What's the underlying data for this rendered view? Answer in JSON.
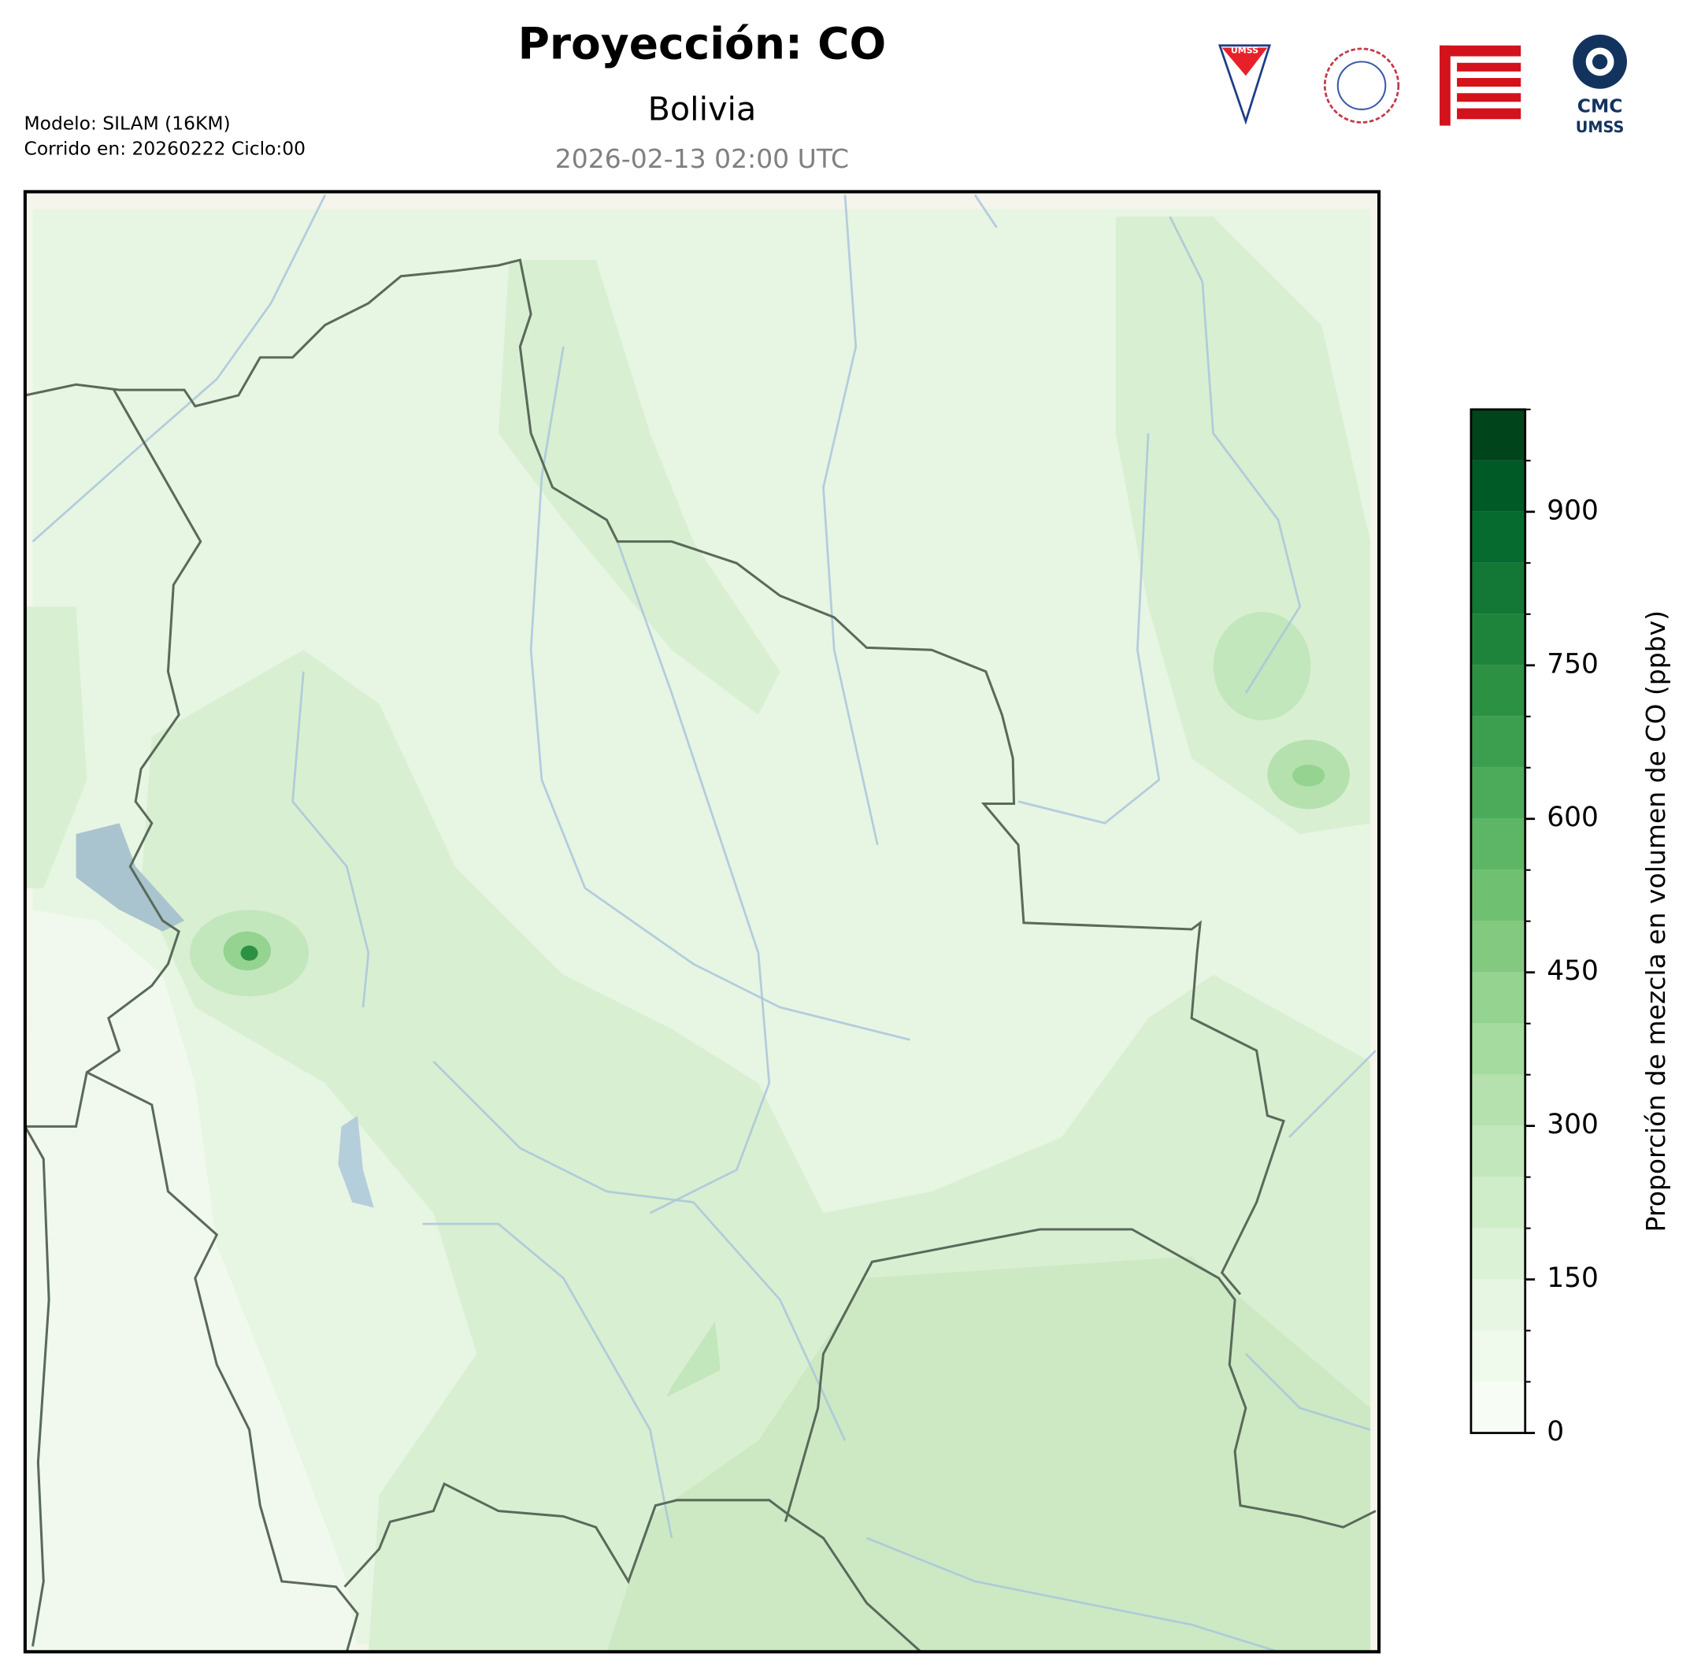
{
  "header": {
    "title": "Proyección: CO",
    "subtitle": "Bolivia",
    "timestamp": "2026-02-13 02:00 UTC",
    "model": "Modelo: SILAM (16KM)",
    "run": "Corrido en: 20260222 Ciclo:00"
  },
  "logos": {
    "umss": "UMSS",
    "cmc": "CMC",
    "cmc_sub": "UMSS"
  },
  "colorbar": {
    "label": "Proporción de mezcla en volumen de CO (ppbv)",
    "range": [
      0,
      1000
    ],
    "ticks": [
      0,
      150,
      300,
      450,
      600,
      750,
      900
    ],
    "colors": [
      "#f7fcf5",
      "#eff9ec",
      "#e7f6e3",
      "#dcf2d7",
      "#d0edca",
      "#c3e7bc",
      "#b5e1ae",
      "#a5db9f",
      "#94d390",
      "#83ca80",
      "#70c071",
      "#5db665",
      "#4bab5b",
      "#3c9f50",
      "#2d9144",
      "#1f843b",
      "#137735",
      "#056b2e",
      "#005a25",
      "#00441b"
    ]
  }
}
